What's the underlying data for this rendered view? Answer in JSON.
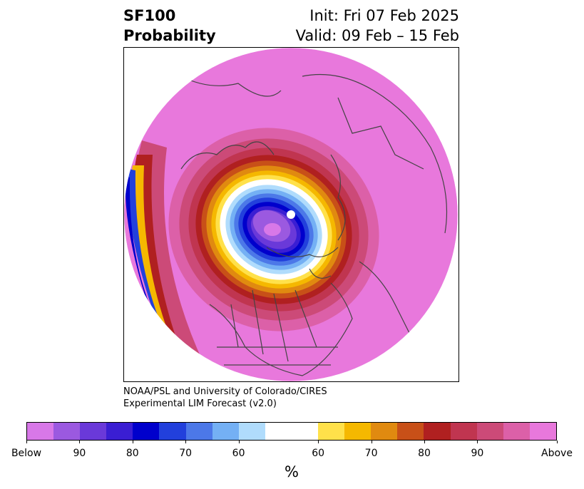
{
  "header": {
    "variable": "SF100",
    "product": "Probability",
    "init": "Init: Fri 07 Feb 2025",
    "valid": "Valid: 09 Feb – 15 Feb"
  },
  "credit": {
    "line1": "NOAA/PSL and University of Colorado/CIRES",
    "line2": "Experimental LIM Forecast (v2.0)"
  },
  "colorbar": {
    "unit": "%",
    "below_colors": [
      "#d878e8",
      "#9b59e0",
      "#6a39d9",
      "#3a1ed3",
      "#0000cc",
      "#2240dc",
      "#4c78e8",
      "#74b0f4",
      "#b0dcfc"
    ],
    "neutral_color": "#ffffff",
    "above_colors": [
      "#ffe14a",
      "#f5b800",
      "#e08a10",
      "#c85018",
      "#b02020",
      "#c03550",
      "#cc4a78",
      "#dc60a8",
      "#e878dc"
    ],
    "tick_labels": [
      "Below",
      "90",
      "80",
      "70",
      "60",
      "60",
      "70",
      "80",
      "90",
      "Above"
    ]
  },
  "map": {
    "projection": "north polar stereographic",
    "field": "probability of above/below normal SF100",
    "ocean_fill": "#e878dc"
  }
}
